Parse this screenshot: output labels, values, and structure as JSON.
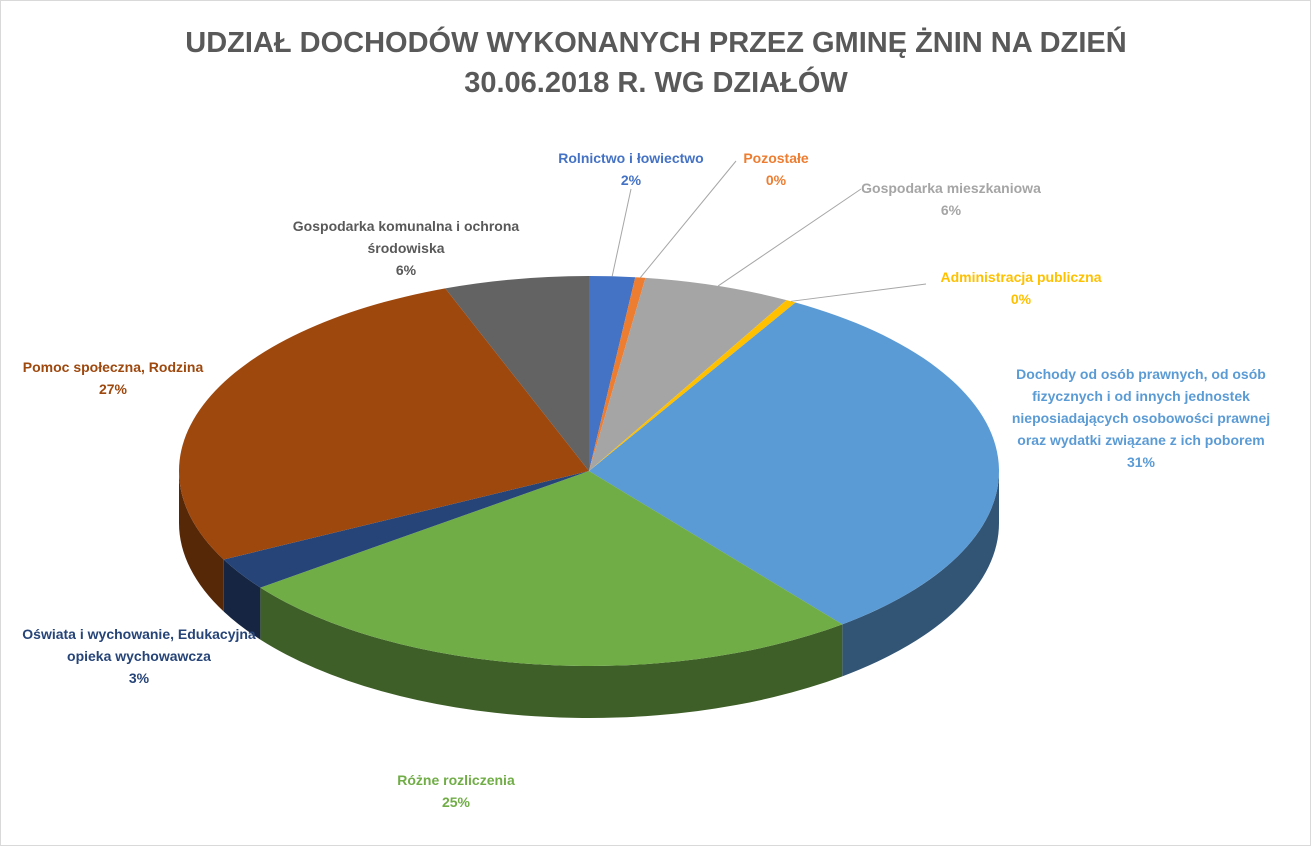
{
  "chart_data": {
    "type": "pie",
    "title": "UDZIAŁ DOCHODÓW WYKONANYCH PRZEZ GMINĘ ŻNIN NA DZIEŃ 30.06.2018 R. WG DZIAŁÓW",
    "categories": [
      "Rolnictwo i łowiectwo",
      "Pozostałe",
      "Gospodarka mieszkaniowa",
      "Administracja publiczna",
      "Dochody od osób prawnych, od osób fizycznych i od innych jednostek nieposiadających osobowości prawnej oraz wydatki związane z ich poborem",
      "Różne rozliczenia",
      "Oświata i wychowanie, Edukacyjna opieka wychowawcza",
      "Pomoc społeczna, Rodzina",
      "Gospodarka komunalna i ochrona środowiska"
    ],
    "values": [
      1.8,
      0.4,
      5.8,
      0.4,
      31,
      25.4,
      2.7,
      26.8,
      5.7
    ],
    "value_labels": [
      "2%",
      "0%",
      "6%",
      "0%",
      "31%",
      "25%",
      "3%",
      "27%",
      "6%"
    ],
    "colors": [
      "#4472c4",
      "#ed7d31",
      "#a5a5a5",
      "#ffc000",
      "#5b9bd5",
      "#70ad47",
      "#264478",
      "#9e480e",
      "#636363"
    ]
  }
}
